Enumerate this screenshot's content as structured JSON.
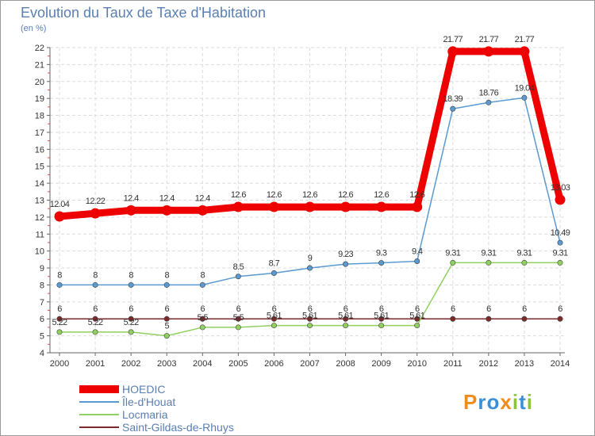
{
  "title": "Evolution du Taux de Taxe d'Habitation",
  "subtitle": "(en %)",
  "logo": {
    "text": "Proxiti",
    "letter_colors": [
      "#f08c1e",
      "#3c8fd6",
      "#3c8fd6",
      "#f08c1e",
      "#8bc53f",
      "#3c8fd6",
      "#8bc53f"
    ]
  },
  "chart_data": {
    "type": "line",
    "title": "Evolution du Taux de Taxe d'Habitation",
    "ylabel": "(en %)",
    "x": [
      "2000",
      "2001",
      "2002",
      "2003",
      "2004",
      "2005",
      "2006",
      "2007",
      "2008",
      "2009",
      "2010",
      "2011",
      "2012",
      "2013",
      "2014"
    ],
    "ylim": [
      4,
      22
    ],
    "yticks": [
      4,
      5,
      6,
      7,
      8,
      9,
      10,
      11,
      12,
      13,
      14,
      15,
      16,
      17,
      18,
      19,
      20,
      21,
      22
    ],
    "grid": true,
    "legend_position": "bottom-left",
    "series": [
      {
        "name": "HOEDIC",
        "color": "#ee0000",
        "line_width": 9,
        "values": [
          12.04,
          12.22,
          12.4,
          12.4,
          12.4,
          12.6,
          12.6,
          12.6,
          12.6,
          12.6,
          12.6,
          21.77,
          21.77,
          21.77,
          13.03
        ],
        "labels": [
          "12.04",
          "12.22",
          "12.4",
          "12.4",
          "12.4",
          "12.6",
          "12.6",
          "12.6",
          "12.6",
          "12.6",
          "12.6",
          "21.77",
          "21.77",
          "21.77",
          "13.03"
        ]
      },
      {
        "name": "Île-d'Houat",
        "color": "#5a9ad0",
        "line_width": 1.5,
        "values": [
          8,
          8,
          8,
          8,
          8,
          8.5,
          8.7,
          9,
          9.23,
          9.3,
          9.4,
          18.39,
          18.76,
          19.04,
          10.49
        ],
        "labels": [
          "8",
          "8",
          "8",
          "8",
          "8",
          "8.5",
          "8.7",
          "9",
          "9.23",
          "9.3",
          "9.4",
          "18.39",
          "18.76",
          "19.04",
          "10.49"
        ]
      },
      {
        "name": "Locmaria",
        "color": "#90d060",
        "line_width": 1.5,
        "values": [
          5.22,
          5.22,
          5.22,
          5,
          5.5,
          5.5,
          5.61,
          5.61,
          5.61,
          5.61,
          5.61,
          9.31,
          9.31,
          9.31,
          9.31
        ],
        "labels": [
          "5.22",
          "5.22",
          "5.22",
          "5",
          "5.5",
          "5.5",
          "5.61",
          "5.61",
          "5.61",
          "5.61",
          "5.61",
          "9.31",
          "9.31",
          "9.31",
          "9.31"
        ]
      },
      {
        "name": "Saint-Gildas-de-Rhuys",
        "color": "#7a2a2a",
        "line_width": 1.5,
        "values": [
          6,
          6,
          6,
          6,
          6,
          6,
          6,
          6,
          6,
          6,
          6,
          6,
          6,
          6,
          6
        ],
        "labels": [
          "6",
          "6",
          "6",
          "6",
          "6",
          "6",
          "6",
          "6",
          "6",
          "6",
          "6",
          "6",
          "6",
          "6",
          "6"
        ]
      }
    ]
  }
}
